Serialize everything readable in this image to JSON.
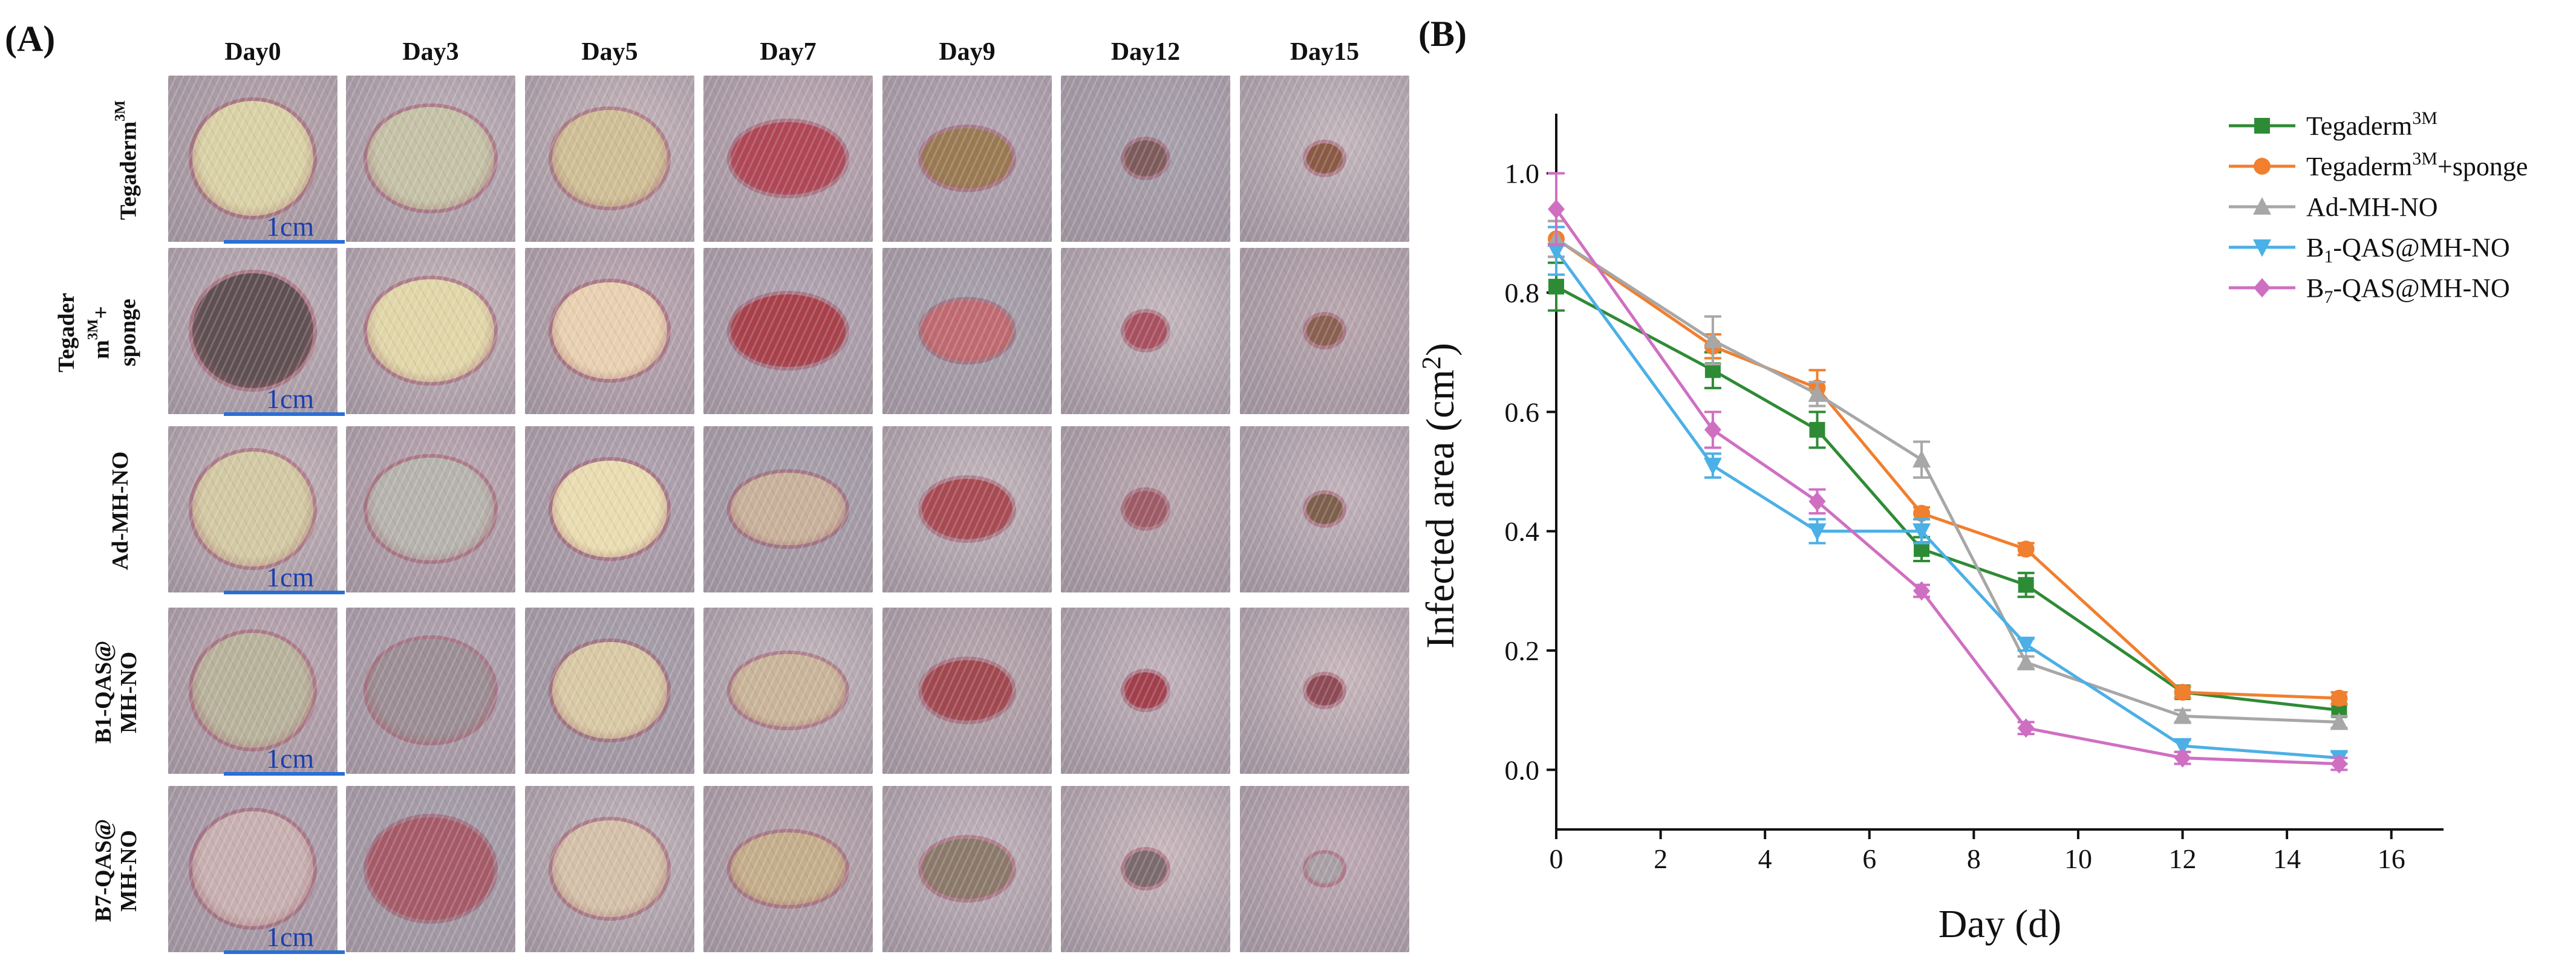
{
  "panel_a": {
    "label": "(A)",
    "days": [
      "Day0",
      "Day3",
      "Day5",
      "Day7",
      "Day9",
      "Day12",
      "Day15"
    ],
    "rows": [
      {
        "label": "Tegaderm3M",
        "label_parts": [
          "Tegaderm",
          "3M"
        ]
      },
      {
        "label": "Tegader\nm3M+\nsponge",
        "label_parts": [
          "Tegader",
          "m",
          "3M",
          "+",
          "sponge"
        ]
      },
      {
        "label": "Ad-MH-NO"
      },
      {
        "label": "B1-QAS@\nMH-NO"
      },
      {
        "label": "B7-QAS@\nMH-NO"
      }
    ],
    "scale_bar": "1cm"
  },
  "panel_b": {
    "label": "(B)"
  },
  "chart_data": {
    "type": "line",
    "title": "",
    "xlabel": "Day (d)",
    "ylabel": "Infected area (cm2)",
    "xlim": [
      0,
      17
    ],
    "ylim": [
      -0.1,
      1.1
    ],
    "xticks": [
      0,
      2,
      4,
      6,
      8,
      10,
      12,
      14,
      16
    ],
    "yticks": [
      0.0,
      0.2,
      0.4,
      0.6,
      0.8,
      1.0
    ],
    "ytick_labels": [
      "0.0",
      "0.2",
      "0.4",
      "0.6",
      "0.8",
      "1.0"
    ],
    "x": [
      0,
      3,
      5,
      7,
      9,
      12,
      15
    ],
    "series": [
      {
        "name": "Tegaderm3M",
        "name_base": "Tegaderm",
        "name_sup": "3M",
        "name_sub": "",
        "name_suffix": "",
        "color": "#2e8b35",
        "marker": "square",
        "values": [
          0.81,
          0.67,
          0.57,
          0.37,
          0.31,
          0.13,
          0.1
        ],
        "errors": [
          0.04,
          0.03,
          0.03,
          0.02,
          0.02,
          0.01,
          0.01
        ]
      },
      {
        "name": "Tegaderm3M+sponge",
        "name_base": "Tegaderm",
        "name_sup": "3M",
        "name_sub": "",
        "name_suffix": "+sponge",
        "color": "#f07f2e",
        "marker": "circle",
        "values": [
          0.89,
          0.71,
          0.64,
          0.43,
          0.37,
          0.13,
          0.12
        ],
        "errors": [
          0.03,
          0.02,
          0.03,
          0.01,
          0.01,
          0.01,
          0.01
        ]
      },
      {
        "name": "Ad-MH-NO",
        "name_base": "Ad-MH-NO",
        "name_sup": "",
        "name_sub": "",
        "name_suffix": "",
        "color": "#a7a7a7",
        "marker": "triangle-up",
        "values": [
          0.89,
          0.72,
          0.63,
          0.52,
          0.18,
          0.09,
          0.08
        ],
        "errors": [
          0.03,
          0.04,
          0.02,
          0.03,
          0.01,
          0.01,
          0.01
        ]
      },
      {
        "name": "B1-QAS@MH-NO",
        "name_base": "B",
        "name_sup": "",
        "name_sub": "1",
        "name_suffix": "-QAS@MH-NO",
        "color": "#4bb0e6",
        "marker": "triangle-down",
        "values": [
          0.87,
          0.51,
          0.4,
          0.4,
          0.21,
          0.04,
          0.02
        ],
        "errors": [
          0.04,
          0.02,
          0.02,
          0.02,
          0.01,
          0.01,
          0.01
        ]
      },
      {
        "name": "B7-QAS@MH-NO",
        "name_base": "B",
        "name_sup": "",
        "name_sub": "7",
        "name_suffix": "-QAS@MH-NO",
        "color": "#cf6fc2",
        "marker": "diamond",
        "values": [
          0.94,
          0.57,
          0.45,
          0.3,
          0.07,
          0.02,
          0.01
        ],
        "errors": [
          0.06,
          0.03,
          0.02,
          0.01,
          0.01,
          0.01,
          0.01
        ]
      }
    ],
    "legend_position": "top-right"
  }
}
